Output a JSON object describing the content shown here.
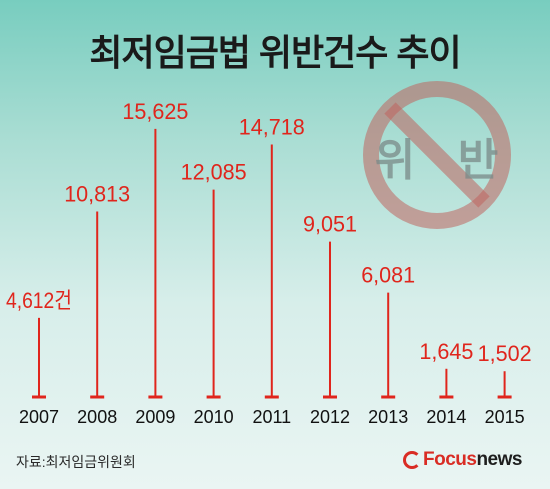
{
  "title": "최저임금법 위반건수 추이",
  "chart_data": {
    "type": "bar",
    "title": "최저임금법 위반건수 추이",
    "categories": [
      "2007",
      "2008",
      "2009",
      "2010",
      "2011",
      "2012",
      "2013",
      "2014",
      "2015"
    ],
    "values": [
      4612,
      10813,
      15625,
      12085,
      14718,
      9051,
      6081,
      1645,
      1502
    ],
    "value_labels": [
      "4,612건",
      "10,813",
      "15,625",
      "12,085",
      "14,718",
      "9,051",
      "6,081",
      "1,645",
      "1,502"
    ],
    "xlabel": "",
    "ylabel": "",
    "grid": false,
    "legend": "none",
    "bar_color": "#e0251c"
  },
  "watermark": {
    "text_left": "위",
    "text_right": "반",
    "symbol": "no-sign-icon",
    "color": "#c0645f"
  },
  "source": "자료:최저임금위원회",
  "logo": {
    "focus": "Focus",
    "news": "news"
  }
}
